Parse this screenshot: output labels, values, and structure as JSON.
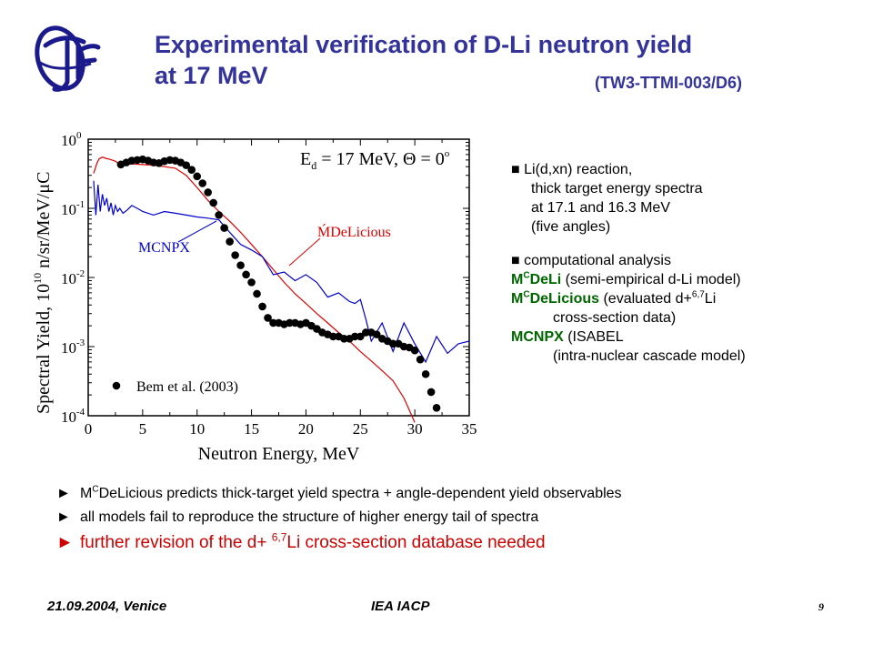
{
  "slide": {
    "title_line1": "Experimental verification of D-Li neutron yield",
    "title_line2": "at 17 MeV",
    "title_code": "(TW3-TTMI-003/D6)",
    "footer_date": "21.09.2004, Venice",
    "footer_event": "IEA IACP",
    "page_number": "9"
  },
  "notes": {
    "reaction_bullet": "■ Li(d,xn) reaction,",
    "reaction_line2": "thick target energy spectra",
    "reaction_line3": "at 17.1 and 16.3 MeV",
    "reaction_line4": "(five angles)",
    "analysis_bullet": "■ computational analysis",
    "mcdeli_m": "M",
    "mcdeli_c": "C",
    "mcdeli_name": "DeLi",
    "mcdeli_desc": " (semi-empirical d-Li model)",
    "mcdelicious_m": "M",
    "mcdelicious_c": "C",
    "mcdelicious_name": "DeLicious",
    "mcdelicious_desc": " (evaluated d+",
    "mcdelicious_sup": "6,7",
    "mcdelicious_desc2": "Li",
    "mcdelicious_line2": "cross-section data)",
    "mcnpx_name": "MCNPX",
    "mcnpx_desc": " (ISABEL",
    "mcnpx_line2": "(intra-nuclear  cascade model)"
  },
  "bullets": {
    "arrow": "►",
    "b1_m": "M",
    "b1_c": "C",
    "b1_text": "DeLicious predicts thick-target yield spectra + angle-dependent yield observables",
    "b2_text": "all models fail to reproduce the structure of higher energy tail of spectra",
    "b3_pre": "further revision of the d+ ",
    "b3_sup": "6,7",
    "b3_post": "Li cross-section database needed"
  },
  "chart_data": {
    "type": "line",
    "xlabel": "Neutron Energy,  MeV",
    "ylabel": "Spectral Yield,  10",
    "ylabel_exp": "10",
    "ylabel_unit": " n/sr/MeV/μC",
    "condition_label": "E",
    "condition_sub": "d",
    "condition_rest": " = 17 MeV,  Θ = 0",
    "condition_deg": "o",
    "xlim": [
      0,
      35
    ],
    "ylim": [
      0.0001,
      1
    ],
    "yscale": "log",
    "x_ticks": [
      "0",
      "5",
      "10",
      "15",
      "20",
      "25",
      "30",
      "35"
    ],
    "y_ticks": [
      {
        "base": "10",
        "exp": "0"
      },
      {
        "base": "10",
        "exp": "-1"
      },
      {
        "base": "10",
        "exp": "-2"
      },
      {
        "base": "10",
        "exp": "-3"
      },
      {
        "base": "10",
        "exp": "-4"
      }
    ],
    "colors": {
      "mcdelicious": "#dd0000",
      "mcnpx": "#0000cc",
      "measured": "#000000"
    },
    "series": [
      {
        "name": "Bem et al. (2003)",
        "style": "markers",
        "x": [
          3.0,
          3.5,
          4.0,
          4.5,
          5.0,
          5.5,
          6.0,
          6.5,
          7.0,
          7.5,
          8.0,
          8.5,
          9.0,
          9.5,
          10.0,
          10.5,
          11.0,
          11.5,
          12.0,
          12.5,
          13.0,
          13.5,
          14.0,
          14.5,
          15.0,
          15.5,
          16.0,
          16.5,
          17.0,
          17.5,
          18.0,
          18.5,
          19.0,
          19.5,
          20.0,
          20.5,
          21.0,
          21.5,
          22.0,
          22.5,
          23.0,
          23.5,
          24.0,
          24.5,
          25.0,
          25.5,
          26.0,
          26.5,
          27.0,
          27.5,
          28.0,
          28.5,
          29.0,
          29.5,
          30.0,
          30.5,
          31.0,
          31.5,
          32.0
        ],
        "values": [
          0.43,
          0.46,
          0.49,
          0.5,
          0.51,
          0.49,
          0.46,
          0.45,
          0.48,
          0.5,
          0.49,
          0.46,
          0.42,
          0.36,
          0.29,
          0.23,
          0.17,
          0.12,
          0.08,
          0.052,
          0.033,
          0.021,
          0.015,
          0.011,
          0.0085,
          0.0058,
          0.0038,
          0.0026,
          0.0022,
          0.0022,
          0.0021,
          0.0022,
          0.0022,
          0.0021,
          0.0022,
          0.002,
          0.0018,
          0.0016,
          0.0015,
          0.0014,
          0.0014,
          0.0013,
          0.0013,
          0.0014,
          0.0014,
          0.0016,
          0.0016,
          0.0015,
          0.0013,
          0.0012,
          0.0011,
          0.0011,
          0.001,
          0.00097,
          0.00088,
          0.00065,
          0.0004,
          0.00022,
          0.00013
        ]
      },
      {
        "name": "ḾDeLicious",
        "style": "line",
        "x": [
          0.5,
          0.8,
          1.0,
          1.3,
          1.6,
          2.0,
          2.5,
          3.0,
          3.5,
          4.0,
          5.0,
          6.0,
          7.0,
          8.0,
          9.0,
          10.0,
          11.0,
          12.0,
          13.0,
          14.0,
          15.0,
          16.0,
          17.0,
          18.0,
          19.0,
          20.0,
          21.0,
          22.0,
          23.0,
          24.0,
          25.0,
          26.0,
          27.0,
          28.0,
          29.0,
          29.5,
          30.0
        ],
        "values": [
          0.32,
          0.45,
          0.52,
          0.55,
          0.53,
          0.51,
          0.48,
          0.42,
          0.43,
          0.44,
          0.43,
          0.42,
          0.4,
          0.38,
          0.3,
          0.2,
          0.13,
          0.09,
          0.065,
          0.045,
          0.03,
          0.02,
          0.013,
          0.0085,
          0.0058,
          0.0042,
          0.003,
          0.0022,
          0.0016,
          0.0012,
          0.00085,
          0.00062,
          0.00045,
          0.00032,
          0.00018,
          0.00012,
          8e-05
        ]
      },
      {
        "name": "MCNPX",
        "style": "line",
        "x": [
          0.5,
          0.7,
          0.9,
          1.1,
          1.3,
          1.5,
          1.7,
          1.9,
          2.1,
          2.3,
          2.5,
          2.7,
          2.9,
          3.2,
          3.6,
          4.0,
          4.5,
          5.0,
          6.0,
          7.0,
          8.0,
          9.0,
          10.0,
          11.0,
          12.0,
          13.0,
          14.0,
          15.0,
          16.0,
          17.0,
          18.0,
          19.0,
          20.0,
          21.0,
          22.0,
          23.0,
          24.0,
          24.5,
          25.0,
          25.5,
          26.0,
          27.0,
          28.0,
          29.0,
          30.0,
          31.0,
          32.0,
          33.0,
          34.0,
          35.0
        ],
        "values": [
          0.25,
          0.08,
          0.22,
          0.09,
          0.16,
          0.11,
          0.14,
          0.09,
          0.12,
          0.08,
          0.11,
          0.09,
          0.1,
          0.085,
          0.095,
          0.11,
          0.1,
          0.09,
          0.08,
          0.09,
          0.085,
          0.08,
          0.075,
          0.072,
          0.068,
          0.045,
          0.03,
          0.025,
          0.02,
          0.011,
          0.012,
          0.009,
          0.011,
          0.0085,
          0.0052,
          0.006,
          0.0045,
          0.0042,
          0.0048,
          0.0025,
          0.0012,
          0.0022,
          0.00085,
          0.0022,
          0.0011,
          0.0006,
          0.0014,
          0.0008,
          0.0011,
          0.0012
        ]
      }
    ],
    "annotations": {
      "mcdelicious_label": "ḾDeLicious",
      "mcnpx_label": "MCNPX",
      "legend_label": "Bem et al. (2003)"
    }
  }
}
